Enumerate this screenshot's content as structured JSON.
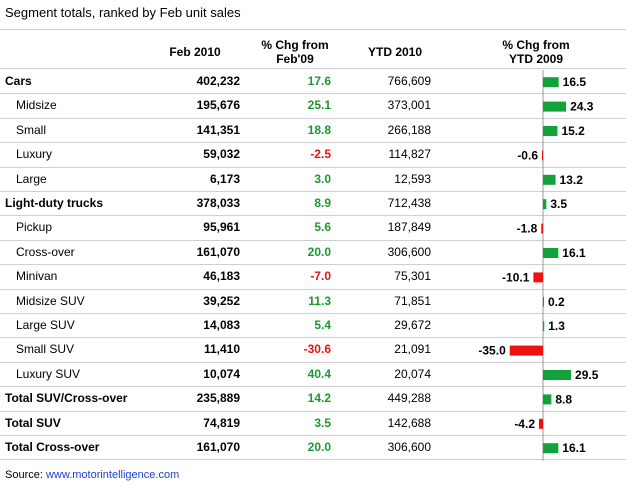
{
  "title": "Segment totals, ranked by Feb unit sales",
  "headers": {
    "feb": [
      "Feb 2010"
    ],
    "chg": [
      "% Chg from",
      "Feb'09"
    ],
    "ytd": [
      "YTD 2010"
    ],
    "ytdchg": [
      "% Chg from",
      "YTD 2009"
    ]
  },
  "colors": {
    "positive": "#1a9a2e",
    "negative": "#e8110f",
    "bar_green": "#13a23a",
    "bar_red": "#ee1111",
    "grid": "#cfcfcf"
  },
  "rows": [
    {
      "label": "Cars",
      "bold": true,
      "sub": false,
      "feb": "402,232",
      "chg": "17.6",
      "ytd": "766,609",
      "ytdchg": "16.5"
    },
    {
      "label": "Midsize",
      "bold": false,
      "sub": true,
      "feb": "195,676",
      "chg": "25.1",
      "ytd": "373,001",
      "ytdchg": "24.3"
    },
    {
      "label": "Small",
      "bold": false,
      "sub": true,
      "feb": "141,351",
      "chg": "18.8",
      "ytd": "266,188",
      "ytdchg": "15.2"
    },
    {
      "label": "Luxury",
      "bold": false,
      "sub": true,
      "feb": "59,032",
      "chg": "-2.5",
      "ytd": "114,827",
      "ytdchg": "-0.6"
    },
    {
      "label": "Large",
      "bold": false,
      "sub": true,
      "feb": "6,173",
      "chg": "3.0",
      "ytd": "12,593",
      "ytdchg": "13.2"
    },
    {
      "label": "Light-duty trucks",
      "bold": true,
      "sub": false,
      "feb": "378,033",
      "chg": "8.9",
      "ytd": "712,438",
      "ytdchg": "3.5"
    },
    {
      "label": "Pickup",
      "bold": false,
      "sub": true,
      "feb": "95,961",
      "chg": "5.6",
      "ytd": "187,849",
      "ytdchg": "-1.8"
    },
    {
      "label": "Cross-over",
      "bold": false,
      "sub": true,
      "feb": "161,070",
      "chg": "20.0",
      "ytd": "306,600",
      "ytdchg": "16.1"
    },
    {
      "label": "Minivan",
      "bold": false,
      "sub": true,
      "feb": "46,183",
      "chg": "-7.0",
      "ytd": "75,301",
      "ytdchg": "-10.1"
    },
    {
      "label": "Midsize SUV",
      "bold": false,
      "sub": true,
      "feb": "39,252",
      "chg": "11.3",
      "ytd": "71,851",
      "ytdchg": "0.2"
    },
    {
      "label": "Large SUV",
      "bold": false,
      "sub": true,
      "feb": "14,083",
      "chg": "5.4",
      "ytd": "29,672",
      "ytdchg": "1.3"
    },
    {
      "label": "Small SUV",
      "bold": false,
      "sub": true,
      "feb": "11,410",
      "chg": "-30.6",
      "ytd": "21,091",
      "ytdchg": "-35.0"
    },
    {
      "label": "Luxury SUV",
      "bold": false,
      "sub": true,
      "feb": "10,074",
      "chg": "40.4",
      "ytd": "20,074",
      "ytdchg": "29.5"
    },
    {
      "label": "Total SUV/Cross-over",
      "bold": true,
      "sub": false,
      "feb": "235,889",
      "chg": "14.2",
      "ytd": "449,288",
      "ytdchg": "8.8"
    },
    {
      "label": "Total SUV",
      "bold": true,
      "sub": false,
      "feb": "74,819",
      "chg": "3.5",
      "ytd": "142,688",
      "ytdchg": "-4.2"
    },
    {
      "label": "Total Cross-over",
      "bold": true,
      "sub": false,
      "feb": "161,070",
      "chg": "20.0",
      "ytd": "306,600",
      "ytdchg": "16.1"
    }
  ],
  "source": {
    "prefix": "Source: ",
    "link": "www.motorintelligence.com"
  },
  "chart_data": {
    "type": "bar",
    "orientation": "horizontal",
    "categories": [
      "Cars",
      "Midsize",
      "Small",
      "Luxury",
      "Large",
      "Light-duty trucks",
      "Pickup",
      "Cross-over",
      "Minivan",
      "Midsize SUV",
      "Large SUV",
      "Small SUV",
      "Luxury SUV",
      "Total SUV/Cross-over",
      "Total SUV",
      "Total Cross-over"
    ],
    "values": [
      16.5,
      24.3,
      15.2,
      -0.6,
      13.2,
      3.5,
      -1.8,
      16.1,
      -10.1,
      0.2,
      1.3,
      -35.0,
      29.5,
      8.8,
      -4.2,
      16.1
    ],
    "title": "Segment totals, ranked by Feb unit sales",
    "xlabel": "% Chg from YTD 2009",
    "ylabel": ""
  }
}
